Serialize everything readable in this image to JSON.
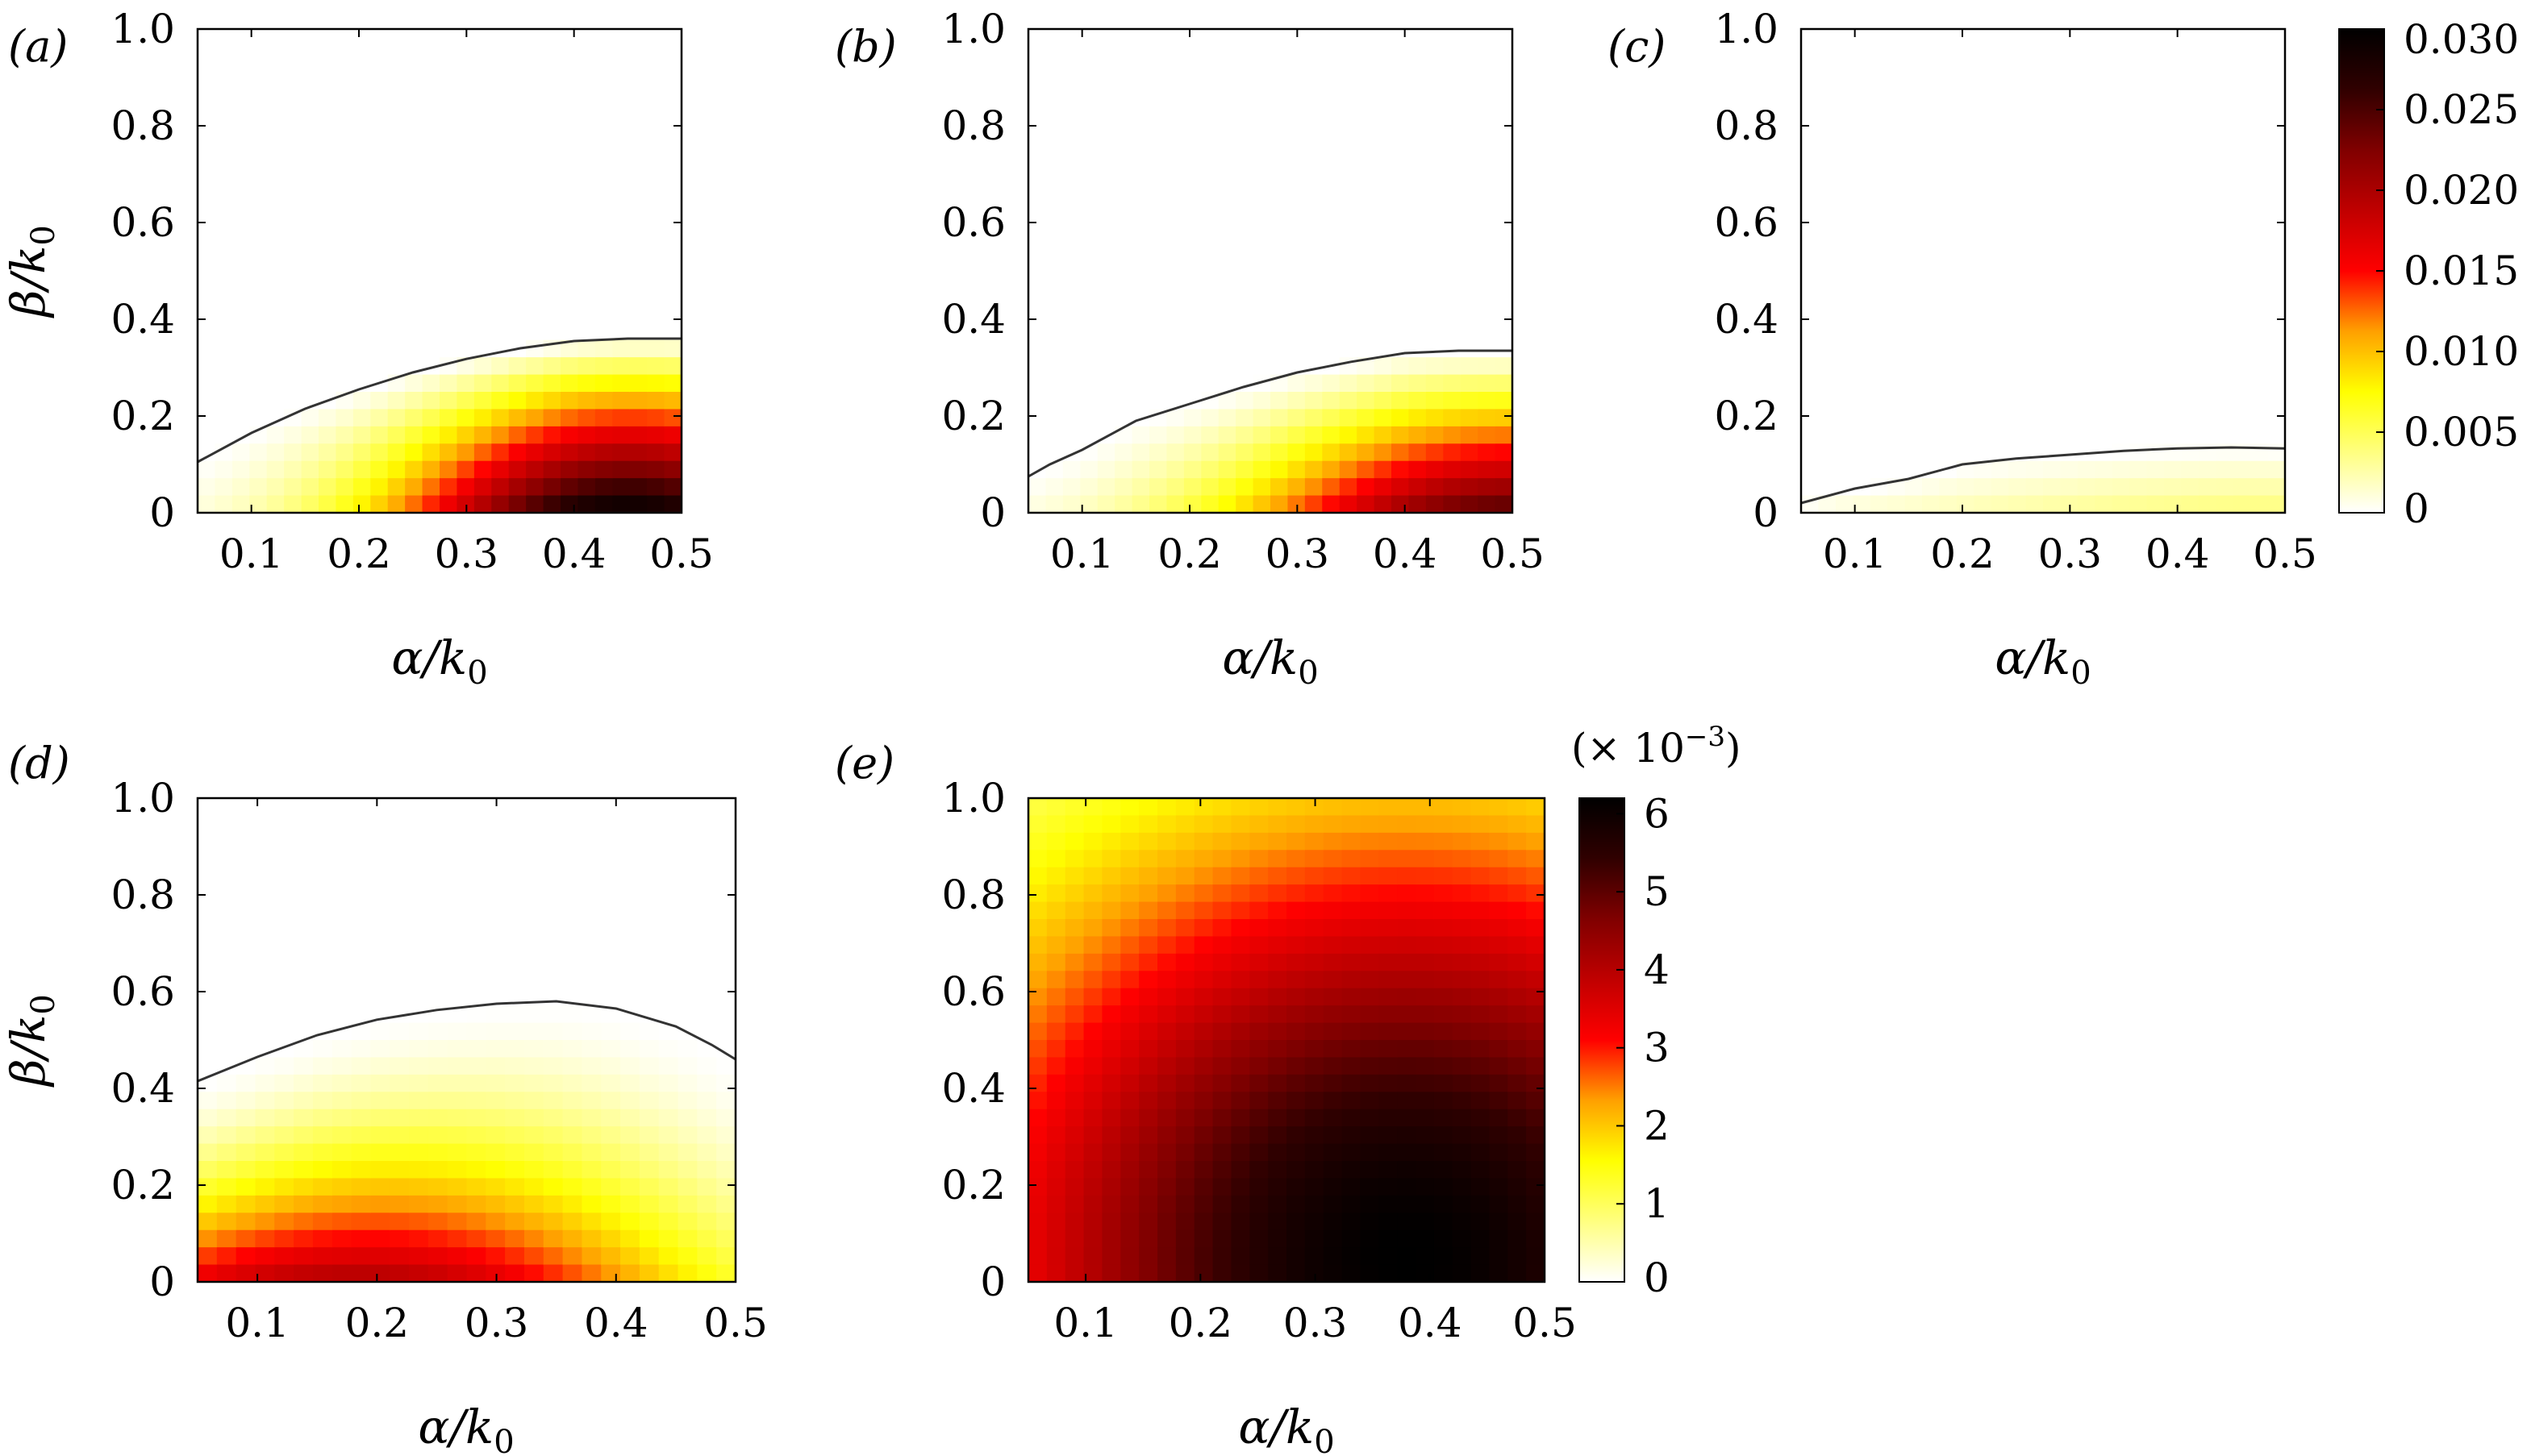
{
  "colors": {
    "colormap": [
      "#ffffff",
      "#ffff80",
      "#ffff00",
      "#ffa000",
      "#ff0000",
      "#c00000",
      "#800000",
      "#300000",
      "#000000"
    ],
    "boundary": "#333333",
    "frame": "#000000"
  },
  "chart_data": [
    {
      "panel_label": "(a)",
      "type": "heatmap",
      "xlabel": "α/k",
      "xlabel_sub": "0",
      "ylabel": "β/k",
      "ylabel_sub": "0",
      "xlim": [
        0.05,
        0.5
      ],
      "ylim": [
        0,
        1.0
      ],
      "x_ticks": [
        0.1,
        0.2,
        0.3,
        0.4,
        0.5
      ],
      "x_tick_labels": [
        "0.1",
        "0.2",
        "0.3",
        "0.4",
        "0.5"
      ],
      "y_ticks": [
        0,
        0.2,
        0.4,
        0.6,
        0.8,
        1.0
      ],
      "y_tick_labels": [
        "0",
        "0.2",
        "0.4",
        "0.6",
        "0.8",
        "1.0"
      ],
      "boundary": [
        [
          0.05,
          0.105
        ],
        [
          0.1,
          0.165
        ],
        [
          0.15,
          0.215
        ],
        [
          0.2,
          0.255
        ],
        [
          0.25,
          0.29
        ],
        [
          0.3,
          0.318
        ],
        [
          0.35,
          0.34
        ],
        [
          0.4,
          0.355
        ],
        [
          0.45,
          0.36
        ],
        [
          0.5,
          0.36
        ]
      ],
      "field": {
        "kind": "growth",
        "peak_x": 0.45,
        "peak_y": 0.0,
        "peak_value": 0.03,
        "sx": 0.22,
        "falloff_power": 1.0
      },
      "colorbar": "cb1"
    },
    {
      "panel_label": "(b)",
      "type": "heatmap",
      "xlabel": "α/k",
      "xlabel_sub": "0",
      "ylabel": "",
      "ylabel_sub": "",
      "xlim": [
        0.05,
        0.5
      ],
      "ylim": [
        0,
        1.0
      ],
      "x_ticks": [
        0.1,
        0.2,
        0.3,
        0.4,
        0.5
      ],
      "x_tick_labels": [
        "0.1",
        "0.2",
        "0.3",
        "0.4",
        "0.5"
      ],
      "y_ticks": [
        0,
        0.2,
        0.4,
        0.6,
        0.8,
        1.0
      ],
      "y_tick_labels": [
        "0",
        "0.2",
        "0.4",
        "0.6",
        "0.8",
        "1.0"
      ],
      "boundary": [
        [
          0.05,
          0.075
        ],
        [
          0.07,
          0.1
        ],
        [
          0.1,
          0.13
        ],
        [
          0.15,
          0.19
        ],
        [
          0.2,
          0.225
        ],
        [
          0.25,
          0.26
        ],
        [
          0.3,
          0.29
        ],
        [
          0.35,
          0.312
        ],
        [
          0.4,
          0.33
        ],
        [
          0.45,
          0.335
        ],
        [
          0.5,
          0.335
        ]
      ],
      "field": {
        "kind": "growth",
        "peak_x": 0.5,
        "peak_y": 0.0,
        "peak_value": 0.025,
        "sx": 0.25,
        "falloff_power": 1.1
      },
      "colorbar": "cb1"
    },
    {
      "panel_label": "(c)",
      "type": "heatmap",
      "xlabel": "α/k",
      "xlabel_sub": "0",
      "ylabel": "",
      "ylabel_sub": "",
      "xlim": [
        0.05,
        0.5
      ],
      "ylim": [
        0,
        1.0
      ],
      "x_ticks": [
        0.1,
        0.2,
        0.3,
        0.4,
        0.5
      ],
      "x_tick_labels": [
        "0.1",
        "0.2",
        "0.3",
        "0.4",
        "0.5"
      ],
      "y_ticks": [
        0,
        0.2,
        0.4,
        0.6,
        0.8,
        1.0
      ],
      "y_tick_labels": [
        "0",
        "0.2",
        "0.4",
        "0.6",
        "0.8",
        "1.0"
      ],
      "boundary": [
        [
          0.05,
          0.02
        ],
        [
          0.1,
          0.05
        ],
        [
          0.15,
          0.07
        ],
        [
          0.2,
          0.1
        ],
        [
          0.25,
          0.112
        ],
        [
          0.3,
          0.12
        ],
        [
          0.35,
          0.128
        ],
        [
          0.4,
          0.133
        ],
        [
          0.45,
          0.135
        ],
        [
          0.5,
          0.133
        ]
      ],
      "field": {
        "kind": "growth",
        "peak_x": 0.5,
        "peak_y": 0.0,
        "peak_value": 0.004,
        "sx": 0.4,
        "falloff_power": 1.0
      },
      "colorbar": "cb1"
    },
    {
      "panel_label": "(d)",
      "type": "heatmap",
      "xlabel": "α/k",
      "xlabel_sub": "0",
      "ylabel": "β/k",
      "ylabel_sub": "0",
      "xlim": [
        0.05,
        0.5
      ],
      "ylim": [
        0,
        1.0
      ],
      "x_ticks": [
        0.1,
        0.2,
        0.3,
        0.4,
        0.5
      ],
      "x_tick_labels": [
        "0.1",
        "0.2",
        "0.3",
        "0.4",
        "0.5"
      ],
      "y_ticks": [
        0,
        0.2,
        0.4,
        0.6,
        0.8,
        1.0
      ],
      "y_tick_labels": [
        "0",
        "0.2",
        "0.4",
        "0.6",
        "0.8",
        "1.0"
      ],
      "boundary": [
        [
          0.05,
          0.415
        ],
        [
          0.1,
          0.465
        ],
        [
          0.15,
          0.51
        ],
        [
          0.2,
          0.542
        ],
        [
          0.25,
          0.562
        ],
        [
          0.3,
          0.575
        ],
        [
          0.35,
          0.58
        ],
        [
          0.4,
          0.565
        ],
        [
          0.45,
          0.528
        ],
        [
          0.48,
          0.49
        ],
        [
          0.5,
          0.46
        ]
      ],
      "field": {
        "kind": "growth",
        "peak_x": 0.18,
        "peak_y": 0.05,
        "peak_value": 0.02,
        "sx": 0.3,
        "falloff_power": 1.6
      },
      "colorbar": "cb1"
    },
    {
      "panel_label": "(e)",
      "type": "heatmap",
      "xlabel": "α/k",
      "xlabel_sub": "0",
      "ylabel": "",
      "ylabel_sub": "",
      "xlim": [
        0.05,
        0.5
      ],
      "ylim": [
        0,
        1.0
      ],
      "x_ticks": [
        0.1,
        0.2,
        0.3,
        0.4,
        0.5
      ],
      "x_tick_labels": [
        "0.1",
        "0.2",
        "0.3",
        "0.4",
        "0.5"
      ],
      "y_ticks": [
        0,
        0.2,
        0.4,
        0.6,
        0.8,
        1.0
      ],
      "y_tick_labels": [
        "0",
        "0.2",
        "0.4",
        "0.6",
        "0.8",
        "1.0"
      ],
      "boundary": [],
      "field": {
        "kind": "full",
        "peak_x": 0.38,
        "peak_y": 0.05,
        "peak_value": 6.2,
        "sx": 0.42,
        "falloff_power": 1.2
      },
      "colorbar": "cb2"
    }
  ],
  "colorbars": {
    "cb1": {
      "min": 0,
      "max": 0.03,
      "ticks": [
        0,
        0.005,
        0.01,
        0.015,
        0.02,
        0.025,
        0.03
      ],
      "tick_labels": [
        "0",
        "0.005",
        "0.010",
        "0.015",
        "0.020",
        "0.025",
        "0.030"
      ],
      "multiplier_base": "",
      "multiplier_exp": ""
    },
    "cb2": {
      "min": 0,
      "max": 6.2,
      "ticks": [
        0,
        1,
        2,
        3,
        4,
        5,
        6
      ],
      "tick_labels": [
        "0",
        "1",
        "2",
        "3",
        "4",
        "5",
        "6"
      ],
      "multiplier_base": "(× 10",
      "multiplier_exp": "−3",
      "multiplier_close": ")"
    }
  }
}
